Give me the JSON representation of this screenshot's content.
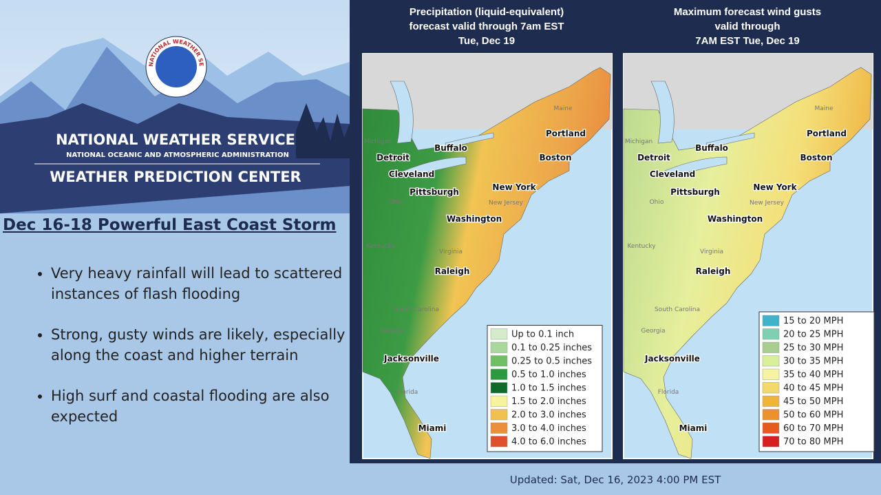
{
  "header": {
    "logo_text": "NATIONAL WEATHER SERVICE",
    "org": "NATIONAL WEATHER SERVICE",
    "parent": "NATIONAL OCEANIC AND ATMOSPHERIC ADMINISTRATION",
    "center": "WEATHER PREDICTION CENTER"
  },
  "headline": "Dec 16-18 Powerful East Coast Storm",
  "bullets": [
    "Very heavy rainfall will lead to scattered instances of flash flooding",
    "Strong, gusty winds are likely, especially along the coast and higher terrain",
    "High surf and coastal flooding are also expected"
  ],
  "maps": [
    {
      "title": [
        "Precipitation (liquid-equivalent)",
        "forecast valid through 7am EST",
        "Tue, Dec 19"
      ],
      "cities": [
        "Buffalo",
        "Detroit",
        "Cleveland",
        "Pittsburgh",
        "Boston",
        "Portland",
        "New York",
        "Washington",
        "Raleigh",
        "Jacksonville",
        "Miami"
      ],
      "states": [
        "Maine",
        "Michigan",
        "Ohio",
        "Kentucky",
        "Virginia",
        "South Carolina",
        "Georgia",
        "Florida",
        "New Jersey"
      ],
      "legend": [
        {
          "label": "Up to 0.1 inch",
          "color": "#d4ecc9"
        },
        {
          "label": "0.1 to 0.25 inches",
          "color": "#a8d99a"
        },
        {
          "label": "0.25 to 0.5 inches",
          "color": "#6fbf64"
        },
        {
          "label": "0.5 to 1.0 inches",
          "color": "#2e9a3f"
        },
        {
          "label": "1.0 to 1.5 inches",
          "color": "#0f6b2a"
        },
        {
          "label": "1.5 to 2.0 inches",
          "color": "#f7f39c"
        },
        {
          "label": "2.0 to 3.0 inches",
          "color": "#f2c04e"
        },
        {
          "label": "3.0 to 4.0 inches",
          "color": "#ec8f3b"
        },
        {
          "label": "4.0 to 6.0 inches",
          "color": "#e0502c"
        }
      ]
    },
    {
      "title": [
        "Maximum forecast wind gusts",
        "valid through",
        "7AM EST Tue, Dec 19"
      ],
      "cities": [
        "Buffalo",
        "Detroit",
        "Cleveland",
        "Pittsburgh",
        "Boston",
        "Portland",
        "New York",
        "Washington",
        "Raleigh",
        "Jacksonville",
        "Miami"
      ],
      "states": [
        "Maine",
        "Michigan",
        "Ohio",
        "Kentucky",
        "Virginia",
        "South Carolina",
        "Georgia",
        "Florida",
        "New Jersey"
      ],
      "legend": [
        {
          "label": "15 to 20 MPH",
          "color": "#3fb3c8"
        },
        {
          "label": "20 to 25 MPH",
          "color": "#7fcfb3"
        },
        {
          "label": "25 to 30 MPH",
          "color": "#a8cf8f"
        },
        {
          "label": "30 to 35 MPH",
          "color": "#d9ef9a"
        },
        {
          "label": "35 to 40 MPH",
          "color": "#f6f3a3"
        },
        {
          "label": "40 to 45 MPH",
          "color": "#f5d86c"
        },
        {
          "label": "45 to 50 MPH",
          "color": "#f0b43a"
        },
        {
          "label": "50 to 60 MPH",
          "color": "#eb922c"
        },
        {
          "label": "60 to 70 MPH",
          "color": "#e45a1f"
        },
        {
          "label": "70 to 80 MPH",
          "color": "#d61f1f"
        }
      ]
    }
  ],
  "footer": "Updated: Sat, Dec 16, 2023 4:00 PM EST"
}
